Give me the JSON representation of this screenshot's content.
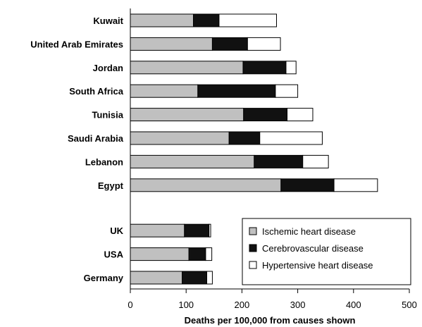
{
  "chart_data": {
    "type": "bar",
    "orientation": "horizontal",
    "stacked": true,
    "xlabel": "Deaths per 100,000 from causes shown",
    "ylabel": "",
    "xlim": [
      0,
      500
    ],
    "xticks": [
      0,
      100,
      200,
      300,
      400,
      500
    ],
    "grid": false,
    "legend_position": "bottom-right",
    "categories": [
      "Kuwait",
      "United Arab Emirates",
      "Jordan",
      "South Africa",
      "Tunisia",
      "Saudi Arabia",
      "Lebanon",
      "Egypt",
      "UK",
      "USA",
      "Germany"
    ],
    "groups": [
      [
        "Kuwait",
        "United Arab Emirates",
        "Jordan",
        "South Africa",
        "Tunisia",
        "Saudi Arabia",
        "Lebanon",
        "Egypt"
      ],
      [
        "UK",
        "USA",
        "Germany"
      ]
    ],
    "series": [
      {
        "name": "Ischemic heart disease",
        "color": "#c0c0c0",
        "values": [
          113,
          147,
          202,
          121,
          203,
          177,
          222,
          270,
          97,
          105,
          93
        ]
      },
      {
        "name": "Cerebrovascular disease",
        "color": "#111111",
        "values": [
          46,
          63,
          77,
          139,
          78,
          55,
          87,
          95,
          44,
          30,
          44
        ]
      },
      {
        "name": "Hypertensive heart disease",
        "color": "#ffffff",
        "values": [
          103,
          59,
          18,
          40,
          46,
          112,
          46,
          78,
          3,
          11,
          10
        ]
      }
    ]
  }
}
